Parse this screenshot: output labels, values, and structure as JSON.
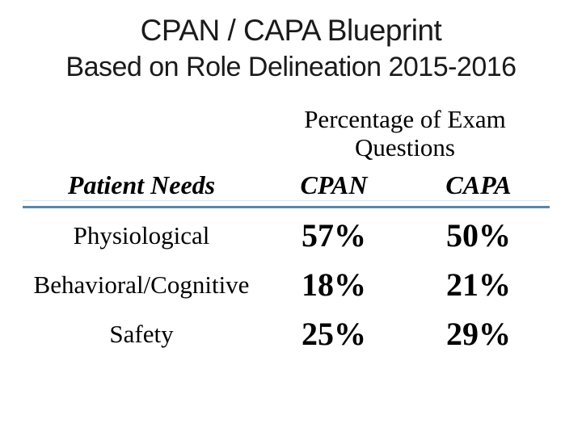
{
  "slide": {
    "title": "CPAN / CAPA Blueprint",
    "subtitle": "Based on Role Delineation 2015-2016"
  },
  "table": {
    "group_header": "Percentage of Exam Questions",
    "columns": [
      "Patient Needs",
      "CPAN",
      "CAPA"
    ],
    "rows": [
      {
        "label": "Physiological",
        "cpan": "57%",
        "capa": "50%"
      },
      {
        "label": "Behavioral/Cognitive",
        "cpan": "18%",
        "capa": "21%"
      },
      {
        "label": "Safety",
        "cpan": "25%",
        "capa": "29%"
      }
    ]
  },
  "chart_data": {
    "type": "table",
    "title": "CPAN / CAPA Blueprint Based on Role Delineation 2015-2016",
    "group_header": "Percentage of Exam Questions",
    "columns": [
      "Patient Needs",
      "CPAN",
      "CAPA"
    ],
    "rows": [
      [
        "Physiological",
        "57%",
        "50%"
      ],
      [
        "Behavioral/Cognitive",
        "18%",
        "21%"
      ],
      [
        "Safety",
        "25%",
        "29%"
      ]
    ]
  },
  "colors": {
    "background": "#ffffff",
    "text": "#000000",
    "title_text": "#1a1a1a",
    "rule_main": "#5b87a8",
    "rule_light": "#dbe5ee"
  }
}
